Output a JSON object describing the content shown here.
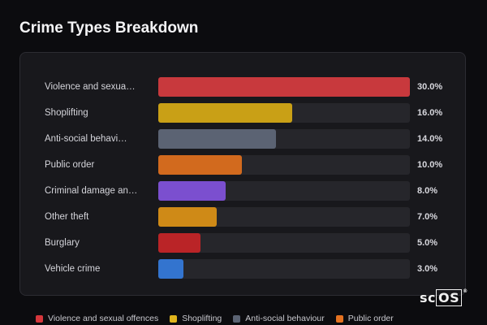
{
  "chart_data": {
    "type": "bar",
    "orientation": "horizontal",
    "title": "Crime Types Breakdown",
    "categories": [
      "Violence and sexual offences",
      "Shoplifting",
      "Anti-social behaviour",
      "Public order",
      "Criminal damage and arson",
      "Other theft",
      "Burglary",
      "Vehicle crime"
    ],
    "display_labels": [
      "Violence and sexua…",
      "Shoplifting",
      "Anti-social behavi…",
      "Public order",
      "Criminal damage an…",
      "Other theft",
      "Burglary",
      "Vehicle crime"
    ],
    "values": [
      30.0,
      16.0,
      14.0,
      10.0,
      8.0,
      7.0,
      5.0,
      3.0
    ],
    "value_labels": [
      "30.0%",
      "16.0%",
      "14.0%",
      "10.0%",
      "8.0%",
      "7.0%",
      "5.0%",
      "3.0%"
    ],
    "colors": [
      "#c8393d",
      "#c9a016",
      "#5b6373",
      "#d26a1e",
      "#7b4fcf",
      "#cf8a17",
      "#ba2427",
      "#3374cf"
    ],
    "xlim": [
      0,
      30
    ],
    "grid": false,
    "legend_position": "bottom",
    "legend": [
      {
        "name": "Violence and sexual offences",
        "color": "#d6373c"
      },
      {
        "name": "Shoplifting",
        "color": "#e0b41c"
      },
      {
        "name": "Anti-social behaviour",
        "color": "#5b6373"
      },
      {
        "name": "Public order",
        "color": "#e57220"
      }
    ]
  },
  "logo_text": "scOS",
  "logo_mark": "®"
}
